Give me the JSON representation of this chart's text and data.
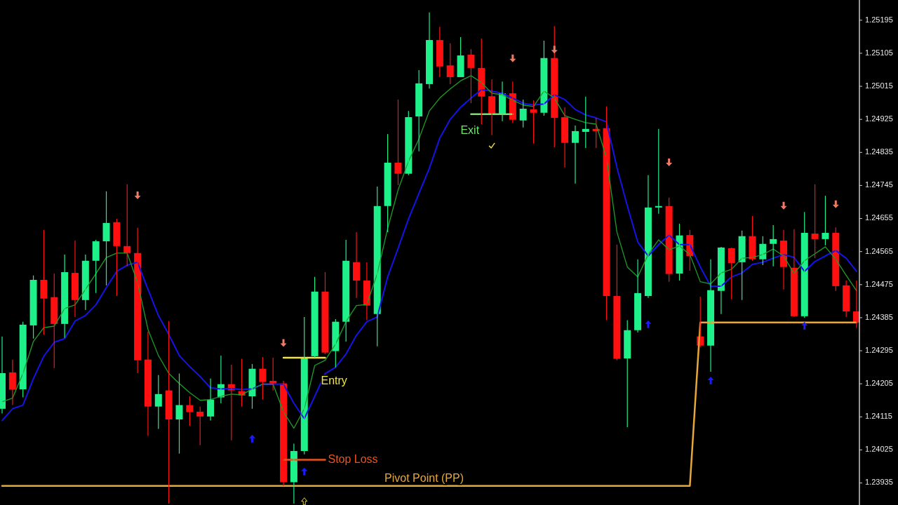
{
  "chart_data": {
    "type": "candlestick",
    "categories": [
      null,
      null,
      null,
      null,
      null,
      null,
      null,
      null,
      null,
      null,
      null,
      null,
      null,
      null,
      null,
      null,
      null,
      null,
      null,
      null,
      null,
      null,
      null,
      null,
      null,
      null,
      null,
      null,
      null,
      null,
      null,
      null,
      null,
      null,
      null,
      null,
      null,
      null,
      null,
      null,
      null,
      null,
      null,
      null,
      null,
      null,
      null,
      null,
      null,
      null,
      null,
      null,
      null,
      null,
      null,
      null,
      null,
      null,
      null,
      null,
      null,
      null,
      null,
      null,
      null,
      null,
      null,
      null,
      null,
      null,
      null,
      null,
      null,
      null,
      null,
      null,
      null,
      null,
      null,
      null,
      null,
      null,
      null
    ],
    "ohlc": [
      [
        1.24137,
        1.24334,
        1.24124,
        1.24234
      ],
      [
        1.24236,
        1.24271,
        1.24147,
        1.24189
      ],
      [
        1.2419,
        1.24374,
        1.24168,
        1.24366
      ],
      [
        1.24364,
        1.245,
        1.24328,
        1.24488
      ],
      [
        1.24488,
        1.24624,
        1.24339,
        1.24437
      ],
      [
        1.24441,
        1.24505,
        1.24248,
        1.24368
      ],
      [
        1.24368,
        1.24557,
        1.2433,
        1.24509
      ],
      [
        1.24507,
        1.24595,
        1.24387,
        1.24433
      ],
      [
        1.24433,
        1.24557,
        1.24406,
        1.2454
      ],
      [
        1.2454,
        1.24597,
        1.24452,
        1.24593
      ],
      [
        1.24593,
        1.24729,
        1.24473,
        1.24643
      ],
      [
        1.24645,
        1.24654,
        1.24444,
        1.2458
      ],
      [
        1.2458,
        1.24748,
        1.24525,
        1.24561
      ],
      [
        1.24561,
        1.2463,
        1.24234,
        1.24269
      ],
      [
        1.24271,
        1.24347,
        1.24063,
        1.24143
      ],
      [
        1.24143,
        1.24229,
        1.24082,
        1.24177
      ],
      [
        1.24187,
        1.24376,
        1.23879,
        1.24108
      ],
      [
        1.24108,
        1.24233,
        1.24015,
        1.24147
      ],
      [
        1.24147,
        1.24171,
        1.24091,
        1.24128
      ],
      [
        1.24129,
        1.24143,
        1.24038,
        1.24116
      ],
      [
        1.24116,
        1.24219,
        1.24105,
        1.24162
      ],
      [
        1.24168,
        1.24282,
        1.24152,
        1.24204
      ],
      [
        1.24204,
        1.24257,
        1.24051,
        1.24187
      ],
      [
        1.24185,
        1.24273,
        1.24143,
        1.24173
      ],
      [
        1.24171,
        1.24259,
        1.24137,
        1.24246
      ],
      [
        1.24246,
        1.24278,
        1.24162,
        1.2421
      ],
      [
        1.24213,
        1.24276,
        1.24187,
        1.24206
      ],
      [
        1.24206,
        1.24213,
        1.23927,
        1.23937
      ],
      [
        1.23937,
        1.24042,
        1.23879,
        1.24022
      ],
      [
        1.24022,
        1.24387,
        1.24013,
        1.24276
      ],
      [
        1.2428,
        1.24496,
        1.24276,
        1.24456
      ],
      [
        1.24456,
        1.24509,
        1.24286,
        1.2429
      ],
      [
        1.24294,
        1.24381,
        1.2425,
        1.24374
      ],
      [
        1.24374,
        1.24597,
        1.2432,
        1.2454
      ],
      [
        1.24536,
        1.24618,
        1.24439,
        1.24486
      ],
      [
        1.24486,
        1.24536,
        1.24378,
        1.24418
      ],
      [
        1.24395,
        1.24742,
        1.24307,
        1.24689
      ],
      [
        1.24689,
        1.24885,
        1.24618,
        1.24807
      ],
      [
        1.24807,
        1.24979,
        1.24746,
        1.24777
      ],
      [
        1.24777,
        1.24948,
        1.24773,
        1.24931
      ],
      [
        1.24933,
        1.25059,
        1.24838,
        1.25023
      ],
      [
        1.25021,
        1.25216,
        1.25009,
        1.25141
      ],
      [
        1.25141,
        1.25177,
        1.2504,
        1.25069
      ],
      [
        1.25072,
        1.25132,
        1.25021,
        1.2504
      ],
      [
        1.2504,
        1.25149,
        1.2504,
        1.25099
      ],
      [
        1.25101,
        1.25116,
        1.24969,
        1.25065
      ],
      [
        1.25065,
        1.25145,
        1.24912,
        1.24987
      ],
      [
        1.24988,
        1.25034,
        1.24882,
        1.24939
      ],
      [
        1.24939,
        1.25028,
        1.2492,
        1.24996
      ],
      [
        1.24996,
        1.25028,
        1.24916,
        1.24924
      ],
      [
        1.24922,
        1.24979,
        1.24903,
        1.24954
      ],
      [
        1.24952,
        1.24977,
        1.24859,
        1.24943
      ],
      [
        1.24943,
        1.25139,
        1.24935,
        1.25092
      ],
      [
        1.25092,
        1.25179,
        1.24849,
        1.24929
      ],
      [
        1.24931,
        1.24958,
        1.24794,
        1.24861
      ],
      [
        1.24861,
        1.24908,
        1.2475,
        1.24893
      ],
      [
        1.24891,
        1.24987,
        1.24847,
        1.24899
      ],
      [
        1.24899,
        1.24929,
        1.24847,
        1.24893
      ],
      [
        1.24901,
        1.2496,
        1.24378,
        1.24444
      ],
      [
        1.24444,
        1.24584,
        1.24269,
        1.24273
      ],
      [
        1.24274,
        1.24378,
        1.24087,
        1.24351
      ],
      [
        1.24351,
        1.24544,
        1.24345,
        1.24452
      ],
      [
        1.24444,
        1.24773,
        1.24439,
        1.24685
      ],
      [
        1.24685,
        1.24899,
        1.24668,
        1.24689
      ],
      [
        1.24689,
        1.24712,
        1.24483,
        1.24504
      ],
      [
        1.24505,
        1.24641,
        1.24486,
        1.24609
      ],
      [
        1.2461,
        1.24624,
        1.24513,
        1.24553
      ],
      [
        1.24334,
        1.24442,
        1.24305,
        1.24309
      ],
      [
        1.24309,
        1.24544,
        1.24238,
        1.2446
      ],
      [
        1.24458,
        1.24578,
        1.24395,
        1.24576
      ],
      [
        1.24574,
        1.24576,
        1.24435,
        1.24534
      ],
      [
        1.24536,
        1.24622,
        1.24433,
        1.24607
      ],
      [
        1.24607,
        1.24662,
        1.2454,
        1.24544
      ],
      [
        1.24544,
        1.24607,
        1.24528,
        1.24586
      ],
      [
        1.24586,
        1.24637,
        1.24525,
        1.24599
      ],
      [
        1.24595,
        1.24624,
        1.24462,
        1.24523
      ],
      [
        1.24521,
        1.24626,
        1.24387,
        1.24389
      ],
      [
        1.24389,
        1.24673,
        1.24385,
        1.24616
      ],
      [
        1.24614,
        1.24748,
        1.24547,
        1.24599
      ],
      [
        1.24599,
        1.24717,
        1.24582,
        1.24616
      ],
      [
        1.24616,
        1.24631,
        1.24458,
        1.24471
      ],
      [
        1.24473,
        1.24486,
        1.24387,
        1.24402
      ],
      [
        1.24402,
        1.24486,
        1.24357,
        1.24372
      ]
    ],
    "series": [
      {
        "type": "line",
        "color": "#1414e6",
        "values": [
          1.24105,
          1.24137,
          1.24147,
          1.24219,
          1.2428,
          1.24318,
          1.24328,
          1.24376,
          1.24391,
          1.2442,
          1.24467,
          1.24511,
          1.24528,
          1.24536,
          1.24462,
          1.24391,
          1.24339,
          1.24282,
          1.24252,
          1.24225,
          1.24194,
          1.24191,
          1.24192,
          1.24189,
          1.24191,
          1.24204,
          1.24204,
          1.24204,
          1.24152,
          1.2411,
          1.24171,
          1.24233,
          1.2425,
          1.24286,
          1.24337,
          1.24374,
          1.24387,
          1.24496,
          1.24574,
          1.24654,
          1.24723,
          1.24792,
          1.24874,
          1.24925,
          1.24958,
          1.24983,
          1.25006,
          1.25002,
          1.24996,
          1.24983,
          1.24969,
          1.24964,
          1.24967,
          1.24992,
          1.24979,
          1.24952,
          1.24937,
          1.24929,
          1.24918,
          1.24794,
          1.24689,
          1.24591,
          1.24553,
          1.24584,
          1.2461,
          1.24584,
          1.24584,
          1.24523,
          1.24471,
          1.24471,
          1.24496,
          1.24507,
          1.2453,
          1.24536,
          1.24547,
          1.24557,
          1.24549,
          1.24511,
          1.24538,
          1.24553,
          1.24568,
          1.24547,
          1.24511
        ]
      },
      {
        "type": "line",
        "color": "#1e9e28",
        "values": [
          1.24156,
          1.24166,
          1.24233,
          1.2432,
          1.24358,
          1.24362,
          1.2441,
          1.2442,
          1.24462,
          1.24505,
          1.24549,
          1.24561,
          1.24561,
          1.24481,
          1.24353,
          1.24282,
          1.24233,
          1.24206,
          1.24181,
          1.2416,
          1.24162,
          1.24171,
          1.24177,
          1.24175,
          1.24191,
          1.24204,
          1.24204,
          1.24129,
          1.24084,
          1.24137,
          1.24255,
          1.24269,
          1.24313,
          1.24374,
          1.24418,
          1.24421,
          1.24505,
          1.24628,
          1.24733,
          1.24811,
          1.24872,
          1.24948,
          1.24983,
          1.25008,
          1.2503,
          1.25044,
          1.25025,
          1.24996,
          1.24992,
          1.24977,
          1.24964,
          1.2496,
          1.25002,
          1.24983,
          1.24935,
          1.24925,
          1.24916,
          1.24912,
          1.2482,
          1.24618,
          1.24523,
          1.24496,
          1.24557,
          1.24597,
          1.2457,
          1.2458,
          1.24557,
          1.24483,
          1.24477,
          1.24507,
          1.24517,
          1.24547,
          1.24549,
          1.24557,
          1.24572,
          1.24553,
          1.24505,
          1.2454,
          1.24559,
          1.24578,
          1.24544,
          1.245,
          1.24458
        ]
      },
      {
        "type": "line",
        "name": "Pivot Point (PP)",
        "color": "#e6a838",
        "values": [
          1.23927,
          1.23927,
          1.23927,
          1.23927,
          1.23927,
          1.23927,
          1.23927,
          1.23927,
          1.23927,
          1.23927,
          1.23927,
          1.23927,
          1.23927,
          1.23927,
          1.23927,
          1.23927,
          1.23927,
          1.23927,
          1.23927,
          1.23927,
          1.23927,
          1.23927,
          1.23927,
          1.23927,
          1.23927,
          1.23927,
          1.23927,
          1.23927,
          1.23927,
          1.23927,
          1.23927,
          1.23927,
          1.23927,
          1.23927,
          1.23927,
          1.23927,
          1.23927,
          1.23927,
          1.23927,
          1.23927,
          1.23927,
          1.23927,
          1.23927,
          1.23927,
          1.23927,
          1.23927,
          1.23927,
          1.23927,
          1.23927,
          1.23927,
          1.23927,
          1.23927,
          1.23927,
          1.23927,
          1.23927,
          1.23927,
          1.23927,
          1.23927,
          1.23927,
          1.23927,
          1.23927,
          1.23927,
          1.23927,
          1.23927,
          1.23927,
          1.23927,
          1.23927,
          1.24372,
          1.24372,
          1.24372,
          1.24372,
          1.24372,
          1.24372,
          1.24372,
          1.24372,
          1.24372,
          1.24372,
          1.24372,
          1.24372,
          1.24372,
          1.24372,
          1.24372,
          1.24372
        ]
      },
      {
        "type": "line",
        "name": "Entry",
        "color": "#f2e43a",
        "values": [
          null,
          null,
          null,
          null,
          null,
          null,
          null,
          null,
          null,
          null,
          null,
          null,
          null,
          null,
          null,
          null,
          null,
          null,
          null,
          null,
          null,
          null,
          null,
          null,
          null,
          null,
          null,
          1.24276,
          1.24276,
          1.24276,
          1.24276,
          1.24276,
          null,
          null,
          null,
          null,
          null,
          null,
          null,
          null,
          null,
          null,
          null,
          null,
          null,
          null,
          null,
          null,
          null,
          null,
          null,
          null,
          null,
          null,
          null,
          null,
          null,
          null,
          null,
          null,
          null,
          null,
          null,
          null,
          null,
          null,
          null,
          null,
          null,
          null,
          null,
          null,
          null,
          null,
          null,
          null,
          null,
          null,
          null,
          null,
          null,
          null,
          null
        ]
      },
      {
        "type": "line",
        "name": "Stop Loss",
        "color": "#e8541e",
        "values": [
          null,
          null,
          null,
          null,
          null,
          null,
          null,
          null,
          null,
          null,
          null,
          null,
          null,
          null,
          null,
          null,
          null,
          null,
          null,
          null,
          null,
          null,
          null,
          null,
          null,
          null,
          null,
          1.23998,
          1.23998,
          1.23998,
          1.23998,
          1.23998,
          null,
          null,
          null,
          null,
          null,
          null,
          null,
          null,
          null,
          null,
          null,
          null,
          null,
          null,
          null,
          null,
          null,
          null,
          null,
          null,
          null,
          null,
          null,
          null,
          null,
          null,
          null,
          null,
          null,
          null,
          null,
          null,
          null,
          null,
          null,
          null,
          null,
          null,
          null,
          null,
          null,
          null,
          null,
          null,
          null,
          null,
          null,
          null,
          null,
          null,
          null
        ]
      },
      {
        "type": "line",
        "name": "Exit",
        "color": "#78de6e",
        "values": [
          null,
          null,
          null,
          null,
          null,
          null,
          null,
          null,
          null,
          null,
          null,
          null,
          null,
          null,
          null,
          null,
          null,
          null,
          null,
          null,
          null,
          null,
          null,
          null,
          null,
          null,
          null,
          null,
          null,
          null,
          null,
          null,
          null,
          null,
          null,
          null,
          null,
          null,
          null,
          null,
          null,
          null,
          null,
          null,
          null,
          1.24939,
          1.24939,
          1.24939,
          1.24939,
          1.24939,
          null,
          null,
          null,
          null,
          null,
          null,
          null,
          null,
          null,
          null,
          null,
          null,
          null,
          null,
          null,
          null,
          null,
          null,
          null,
          null,
          null,
          null,
          null,
          null,
          null,
          null,
          null,
          null,
          null,
          null,
          null,
          null,
          null
        ]
      }
    ],
    "ylim": [
      1.23875,
      1.2525
    ],
    "yticks": [
      1.25195,
      1.25105,
      1.25015,
      1.24925,
      1.24835,
      1.24745,
      1.24655,
      1.24565,
      1.24475,
      1.24385,
      1.24295,
      1.24205,
      1.24115,
      1.24025,
      1.23935
    ],
    "tick_labels": "y"
  }
}
